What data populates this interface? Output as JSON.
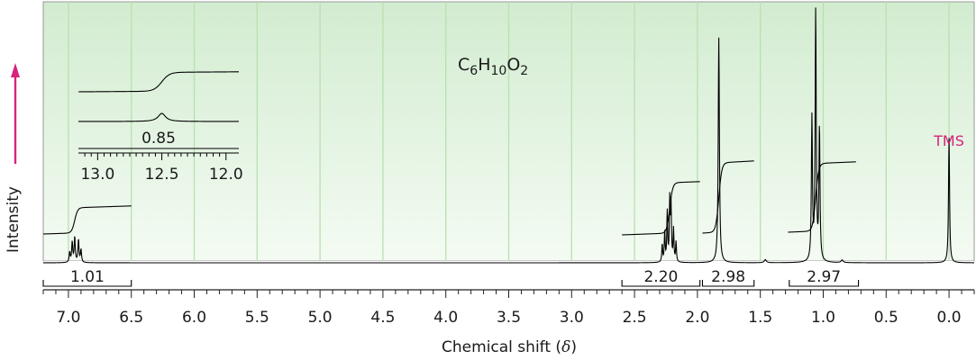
{
  "chart_data": {
    "type": "line",
    "title": "",
    "formula": {
      "main": "C",
      "sub1": "6",
      "h": "H",
      "sub2": "10",
      "o": "O",
      "sub3": "2"
    },
    "xlabel": {
      "text": "Chemical shift (",
      "symbol": "δ",
      "close": ")"
    },
    "ylabel": "Intensity",
    "x_reversed": true,
    "xlim": [
      7.2,
      -0.2
    ],
    "x_ticks": [
      "7.0",
      "6.5",
      "6.0",
      "5.5",
      "5.0",
      "4.5",
      "4.0",
      "3.5",
      "3.0",
      "2.5",
      "2.0",
      "1.5",
      "1.0",
      "0.5",
      "0.0"
    ],
    "grid": true,
    "reference_peak": {
      "label": "TMS",
      "shift": 0.0,
      "height": 0.5,
      "color": "#d6247a"
    },
    "peaks": [
      {
        "shift": 6.95,
        "height": 0.09,
        "multiplicity": "multiplet",
        "integral": "1.01"
      },
      {
        "shift": 2.22,
        "height": 0.27,
        "multiplicity": "multiplet",
        "integral": "2.20"
      },
      {
        "shift": 1.83,
        "height": 0.98,
        "multiplicity": "singlet",
        "integral": "2.98"
      },
      {
        "shift": 1.06,
        "height": 1.0,
        "multiplicity": "triplet",
        "integral": "2.97"
      }
    ],
    "inset": {
      "x_ticks": [
        "13.0",
        "12.5",
        "12.0"
      ],
      "xlim": [
        13.15,
        11.9
      ],
      "peak_shift": 12.5,
      "integral": "0.85"
    },
    "colors": {
      "grid": "#b8e0b0",
      "background_top": "#d9efd7",
      "spectrum": "#000000",
      "arrow": "#d6247a"
    }
  }
}
